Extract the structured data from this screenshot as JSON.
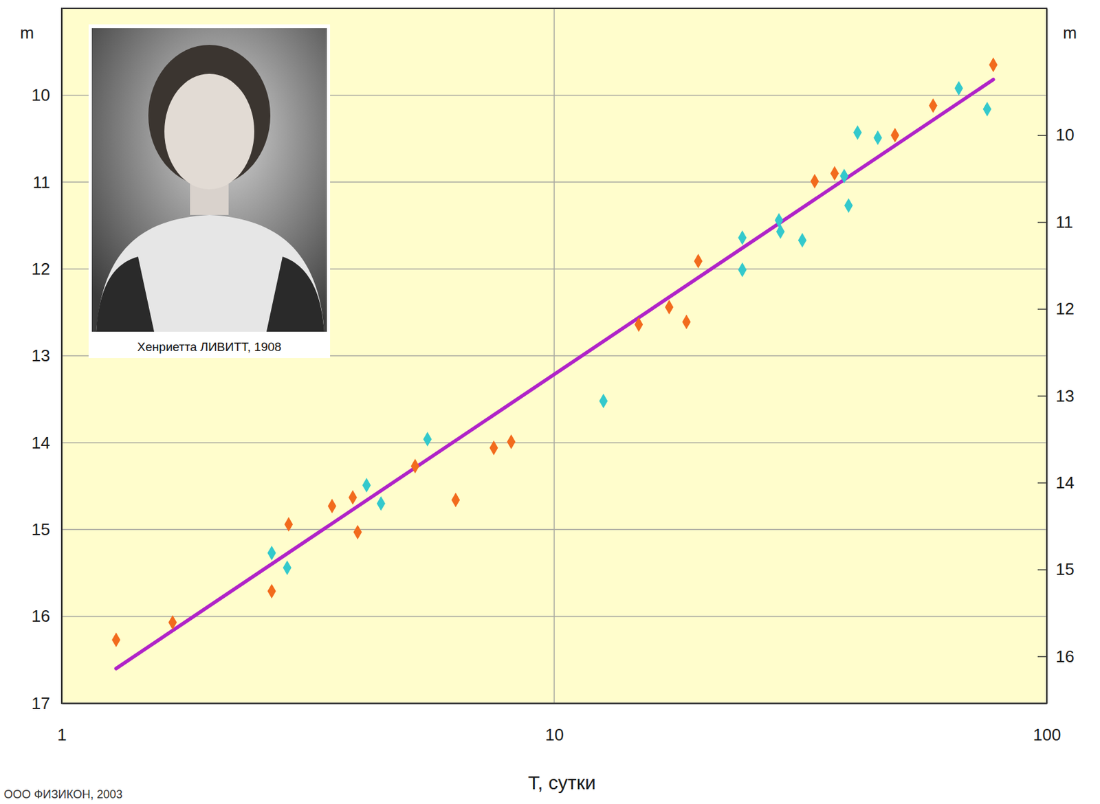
{
  "chart_data": {
    "type": "scatter",
    "x_label": "T, сутки",
    "y_label": "m",
    "y2_label": "m",
    "annotations": [
      "Хенриетта ЛИВИТТ, 1908",
      "ООО ФИЗИКОН, 2003"
    ],
    "log": "x",
    "grid": true,
    "xlim": [
      1,
      100
    ],
    "xticks": [
      1,
      10,
      100
    ],
    "ylim": [
      17,
      9
    ],
    "yticks": [
      10,
      11,
      12,
      13,
      14,
      15,
      16,
      17
    ],
    "y2lim": [
      16.54,
      8.54
    ],
    "y2ticks": [
      10,
      11,
      12,
      13,
      14,
      15,
      16
    ],
    "series": [
      {
        "type": "scatter",
        "color": "#f26b1d",
        "marker": "diamond",
        "x": [
          1.29,
          1.68,
          2.67,
          2.89,
          3.54,
          3.9,
          3.99,
          5.22,
          6.31,
          7.54,
          8.18,
          14.85,
          17.12,
          18.56,
          19.61,
          33.8,
          37.1,
          49.2,
          58.8,
          77.9
        ],
        "values": [
          16.27,
          16.07,
          15.71,
          14.94,
          14.73,
          14.63,
          15.03,
          14.27,
          14.66,
          14.06,
          13.99,
          12.64,
          12.44,
          12.61,
          11.91,
          10.99,
          10.9,
          10.46,
          10.12,
          9.65
        ]
      },
      {
        "type": "scatter",
        "color": "#33c9cc",
        "marker": "diamond",
        "x": [
          2.67,
          2.87,
          4.16,
          4.45,
          5.53,
          12.59,
          24.1,
          24.1,
          28.6,
          28.8,
          31.9,
          38.8,
          39.6,
          41.3,
          45.4,
          66.3,
          75.7
        ],
        "values": [
          15.27,
          15.44,
          14.49,
          14.7,
          13.96,
          13.52,
          11.64,
          12.01,
          11.44,
          11.57,
          11.67,
          10.93,
          11.27,
          10.43,
          10.49,
          9.92,
          10.16
        ]
      },
      {
        "type": "line",
        "color": "#b023c8",
        "line_style": "solid",
        "x": [
          1.29,
          77.9
        ],
        "values": [
          16.6,
          9.82
        ]
      }
    ]
  }
}
